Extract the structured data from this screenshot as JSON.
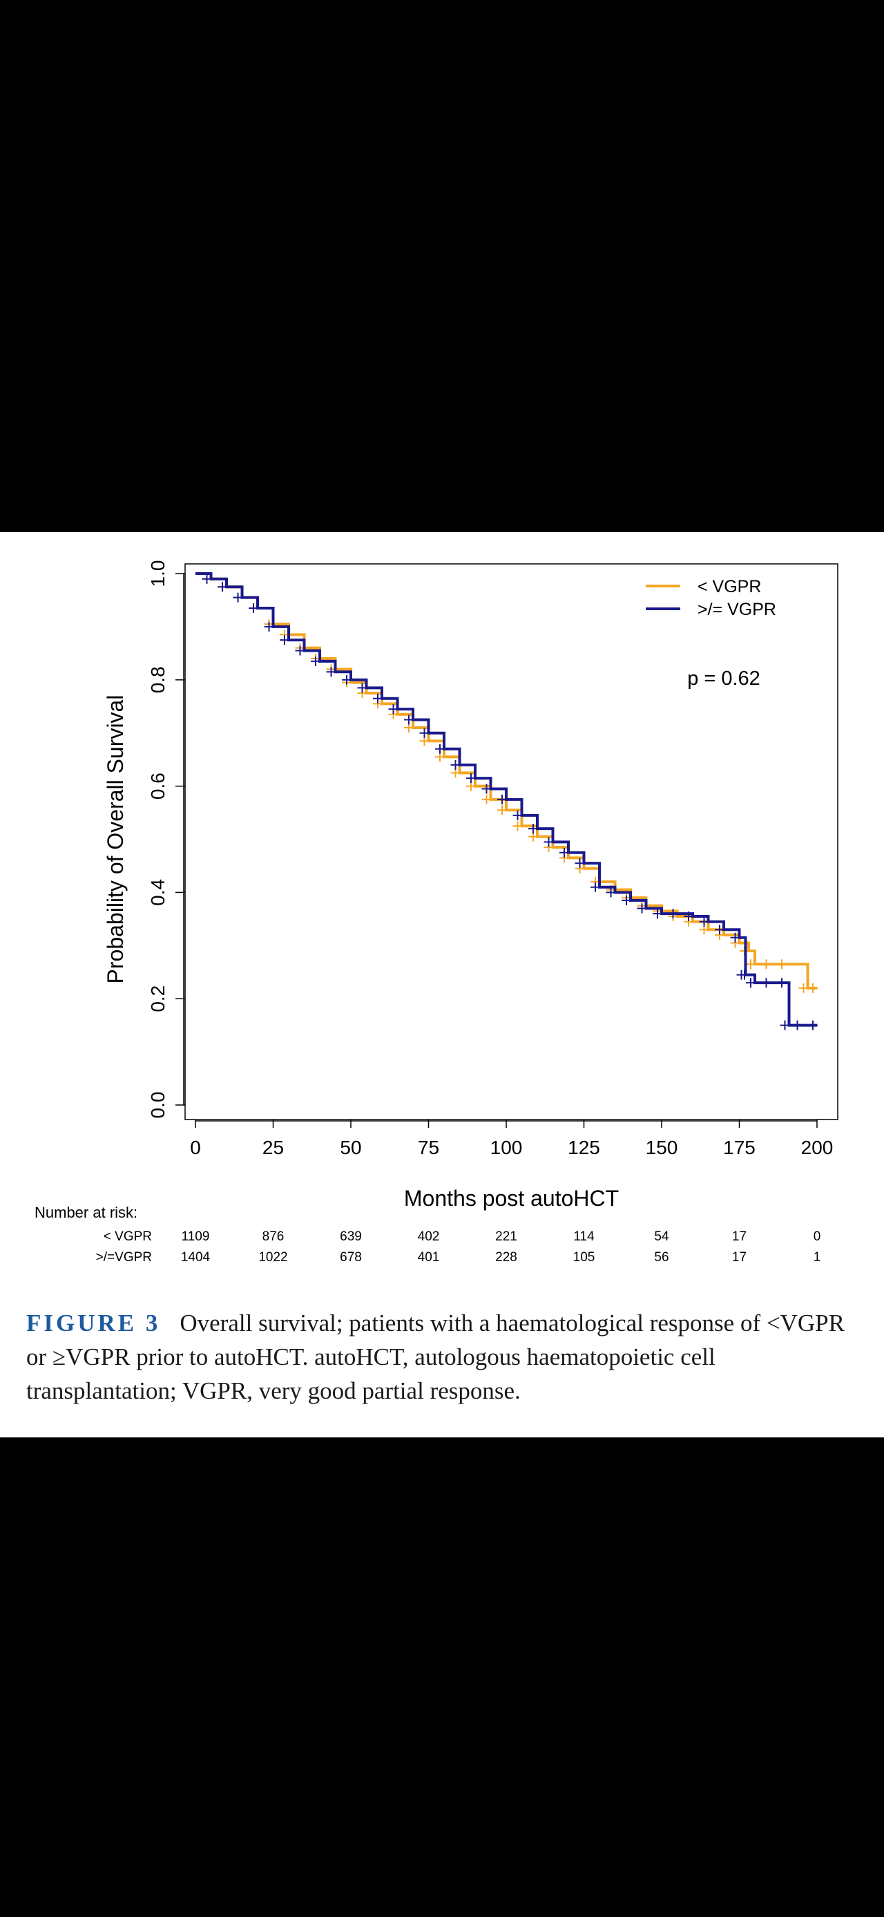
{
  "chart_data": {
    "type": "line",
    "subtype": "kaplan-meier",
    "xlabel": "Months post autoHCT",
    "ylabel": "Probability of Overall Survival",
    "xlim": [
      0,
      205
    ],
    "ylim": [
      0,
      1.0
    ],
    "xticks": [
      "0",
      "25",
      "50",
      "75",
      "100",
      "125",
      "150",
      "175",
      "200"
    ],
    "yticks": [
      "0.0",
      "0.2",
      "0.4",
      "0.6",
      "0.8",
      "1.0"
    ],
    "annotation": "p = 0.62",
    "legend_position": "top-right",
    "grid": false,
    "series": [
      {
        "name": "< VGPR",
        "color": "#f5a623",
        "x": [
          0,
          5,
          10,
          15,
          20,
          25,
          30,
          35,
          40,
          45,
          50,
          55,
          60,
          65,
          70,
          75,
          80,
          85,
          90,
          95,
          100,
          105,
          110,
          115,
          120,
          125,
          130,
          135,
          140,
          145,
          150,
          155,
          160,
          165,
          170,
          175,
          178,
          180,
          185,
          190,
          197,
          200
        ],
        "y": [
          1.0,
          0.99,
          0.975,
          0.955,
          0.935,
          0.905,
          0.885,
          0.86,
          0.84,
          0.82,
          0.795,
          0.775,
          0.755,
          0.735,
          0.71,
          0.685,
          0.655,
          0.625,
          0.6,
          0.575,
          0.555,
          0.525,
          0.505,
          0.485,
          0.465,
          0.445,
          0.42,
          0.405,
          0.39,
          0.375,
          0.365,
          0.355,
          0.345,
          0.33,
          0.32,
          0.305,
          0.29,
          0.265,
          0.265,
          0.265,
          0.22,
          0.22
        ]
      },
      {
        "name": ">/= VGPR",
        "color": "#1a1a8c",
        "x": [
          0,
          5,
          10,
          15,
          20,
          25,
          30,
          35,
          40,
          45,
          50,
          55,
          60,
          65,
          70,
          75,
          80,
          85,
          90,
          95,
          100,
          105,
          110,
          115,
          120,
          125,
          130,
          135,
          140,
          145,
          150,
          155,
          160,
          165,
          170,
          175,
          177,
          178,
          180,
          185,
          190,
          191,
          195,
          200
        ],
        "y": [
          1.0,
          0.99,
          0.975,
          0.955,
          0.935,
          0.9,
          0.875,
          0.855,
          0.835,
          0.815,
          0.8,
          0.785,
          0.765,
          0.745,
          0.725,
          0.7,
          0.67,
          0.64,
          0.615,
          0.595,
          0.575,
          0.545,
          0.52,
          0.495,
          0.475,
          0.455,
          0.41,
          0.4,
          0.385,
          0.37,
          0.36,
          0.36,
          0.355,
          0.345,
          0.33,
          0.315,
          0.245,
          0.245,
          0.23,
          0.23,
          0.23,
          0.15,
          0.15,
          0.15
        ]
      }
    ],
    "risk_table": {
      "title": "Number at risk:",
      "times": [
        0,
        25,
        50,
        75,
        100,
        125,
        150,
        175,
        200
      ],
      "rows": [
        {
          "label": "< VGPR",
          "values": [
            "1109",
            "876",
            "639",
            "402",
            "221",
            "114",
            "54",
            "17",
            "0"
          ]
        },
        {
          "label": ">/=VGPR",
          "values": [
            "1404",
            "1022",
            "678",
            "401",
            "228",
            "105",
            "56",
            "17",
            "1"
          ]
        }
      ]
    }
  },
  "caption": {
    "figure_label": "FIGURE 3",
    "text": "Overall survival; patients with a haematological response of <VGPR or ≥VGPR prior to autoHCT. autoHCT, autologous haematopoietic cell transplantation; VGPR, very good partial response."
  }
}
